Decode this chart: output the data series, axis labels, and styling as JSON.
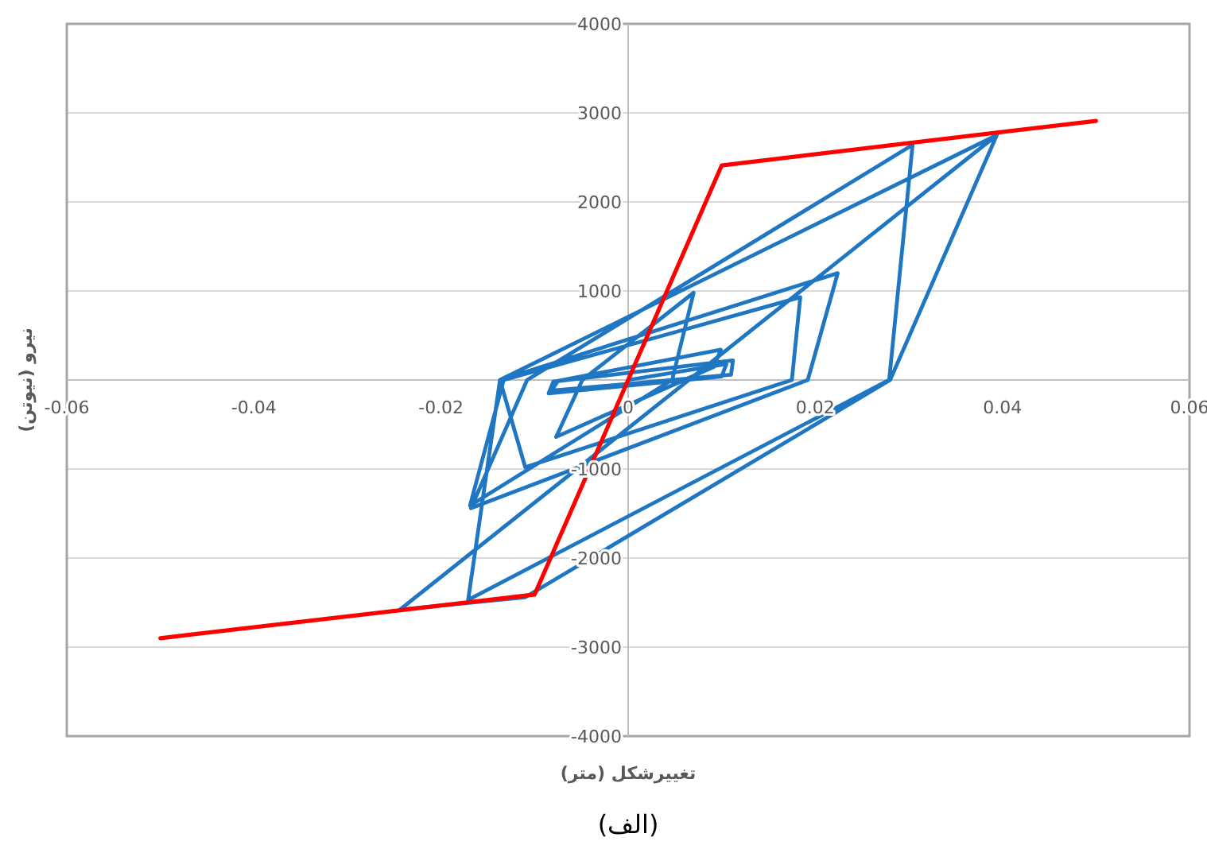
{
  "chart_data": {
    "type": "line",
    "xlabel": "تغییرشکل (متر)",
    "ylabel": "نیرو (نیوتن)",
    "annotations": [
      "(الف)"
    ],
    "xlim": [
      -0.06,
      0.06
    ],
    "xticks": [
      -0.06,
      -0.04,
      -0.02,
      0,
      0.02,
      0.04,
      0.06
    ],
    "ylim": [
      -4000,
      4000
    ],
    "yticks": [
      -4000,
      -3000,
      -2000,
      -1000,
      1000,
      2000,
      3000,
      4000
    ],
    "grid": "y",
    "marker": "none",
    "line_style": "solid",
    "series": [
      {
        "color": "#1f77c4",
        "x": [
          0,
          0.0105,
          0.01,
          -0.0085,
          -0.008,
          0.0112,
          0.011,
          -0.0082,
          -0.0075,
          0.0099,
          0.0092,
          -0.0077,
          -0.0049,
          0.007,
          0.0047,
          -0.0169,
          -0.0133,
          0.0184,
          0.0175,
          -0.011,
          -0.0137,
          0.0224,
          0.0192,
          -0.0168,
          -0.0108,
          0.0304,
          0.0279,
          -0.0171,
          -0.0137,
          0.0394,
          0.028,
          -0.011,
          -0.0244,
          0.0394
        ],
        "values": [
          0,
          180,
          40,
          -150,
          -20,
          220,
          60,
          -120,
          -10,
          340,
          150,
          -640,
          0,
          980,
          0,
          -1410,
          0,
          930,
          0,
          -980,
          0,
          1200,
          0,
          -1440,
          0,
          2640,
          0,
          -2470,
          0,
          2750,
          0,
          -2440,
          -2580,
          2750
        ]
      },
      {
        "color": "#ff0000",
        "x": [
          -0.05,
          -0.01,
          0.01,
          0.05
        ],
        "values": [
          -2900,
          -2410,
          2410,
          2910
        ]
      }
    ]
  }
}
